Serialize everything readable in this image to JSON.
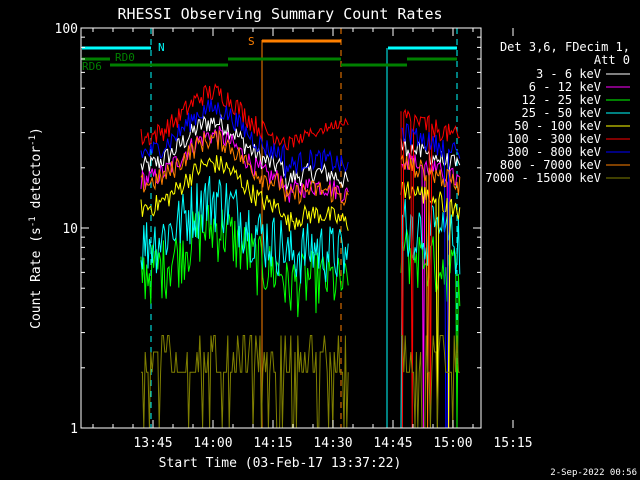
{
  "chart_data": {
    "type": "line",
    "title": "RHESSI Observing Summary Count Rates",
    "xlabel": "Start Time (03-Feb-17 13:37:22)",
    "ylabel_main": "Count Rate (s",
    "ylabel_sup": "-1",
    "ylabel_tail": " detector",
    "ylabel_end": ")",
    "y_scale": "log",
    "ylim": [
      1,
      100
    ],
    "xlim_minutes": [
      -10,
      90
    ],
    "x_ticks": [
      {
        "minute": 8,
        "label": "13:45"
      },
      {
        "minute": 23,
        "label": "14:00"
      },
      {
        "minute": 38,
        "label": "14:15"
      },
      {
        "minute": 53,
        "label": "14:30"
      },
      {
        "minute": 68,
        "label": "14:45"
      },
      {
        "minute": 83,
        "label": "15:00"
      },
      {
        "minute": 98,
        "label": "15:15"
      }
    ],
    "y_ticks": [
      {
        "value": 1,
        "label": "1"
      },
      {
        "value": 10,
        "label": "10"
      },
      {
        "value": 100,
        "label": "100"
      }
    ],
    "legend": {
      "header": [
        "Det 3,6, FDecim 1,",
        "Att 0"
      ],
      "placement": "right"
    },
    "series": [
      {
        "name": "3 - 6 keV",
        "color": "#ffffff",
        "base": 1.0
      },
      {
        "name": "6 - 12 keV",
        "color": "#ff00ff",
        "base": 0.86
      },
      {
        "name": "12 - 25 keV",
        "color": "#00ff00",
        "base": 0.3
      },
      {
        "name": "25 - 50 keV",
        "color": "#00ffff",
        "base": 0.42
      },
      {
        "name": "50 - 100 keV",
        "color": "#ffff00",
        "base": 0.62
      },
      {
        "name": "100 - 300 keV",
        "color": "#ff0000",
        "base": 1.4
      },
      {
        "name": "300 - 800 keV",
        "color": "#0000ff",
        "base": 1.17
      },
      {
        "name": "800 - 7000 keV",
        "color": "#ff8000",
        "base": 0.82
      },
      {
        "name": "7000 - 15000 keV",
        "color": "#808000",
        "base": 0.07
      }
    ],
    "flags": [
      {
        "label": "N",
        "color": "#00ffff"
      },
      {
        "label": "S",
        "color": "#ff8000"
      },
      {
        "label": "RD0",
        "color": "#008000"
      },
      {
        "label": "RD6",
        "color": "#008000"
      }
    ]
  },
  "footer": {
    "timestamp": "2-Sep-2022 00:56"
  }
}
